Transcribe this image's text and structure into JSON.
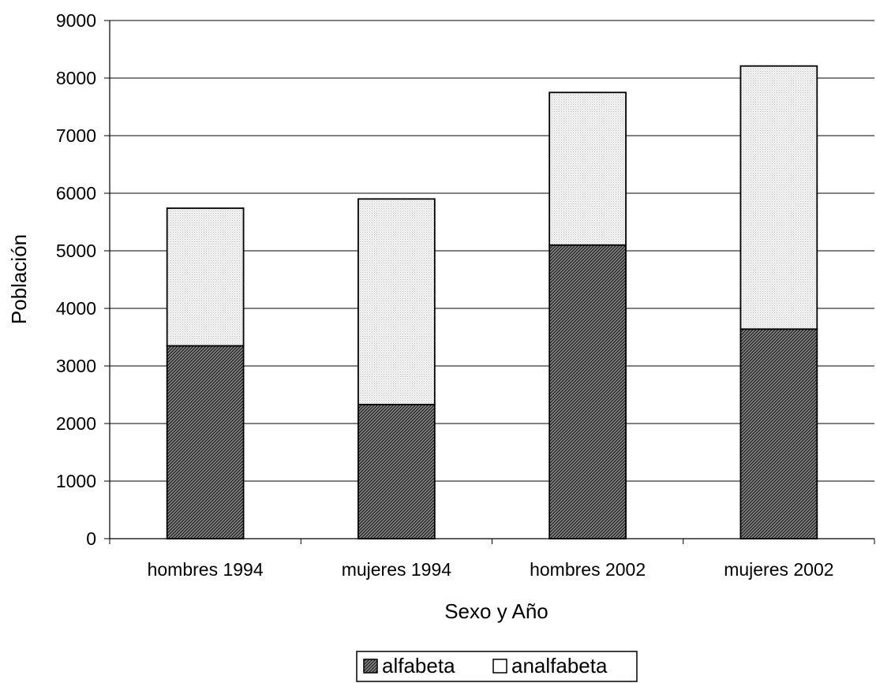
{
  "chart_data": {
    "type": "bar",
    "stacked": true,
    "title": "",
    "xlabel": "Sexo y Año",
    "ylabel": "Población",
    "ylim": [
      0,
      9000
    ],
    "yticks": [
      "0",
      "1000",
      "2000",
      "3000",
      "4000",
      "5000",
      "6000",
      "7000",
      "8000",
      "9000"
    ],
    "grid": "horizontal",
    "legend_position": "bottom",
    "categories": [
      "hombres 1994",
      "mujeres 1994",
      "hombres 2002",
      "mujeres 2002"
    ],
    "series": [
      {
        "name": "alfabeta",
        "values": [
          3350,
          2330,
          5100,
          3640
        ],
        "pattern": "dark-hatched",
        "color": "#555555"
      },
      {
        "name": "analfabeta",
        "values": [
          2390,
          3570,
          2650,
          4570
        ],
        "pattern": "light-dotted",
        "color": "#eeeeee"
      }
    ]
  }
}
